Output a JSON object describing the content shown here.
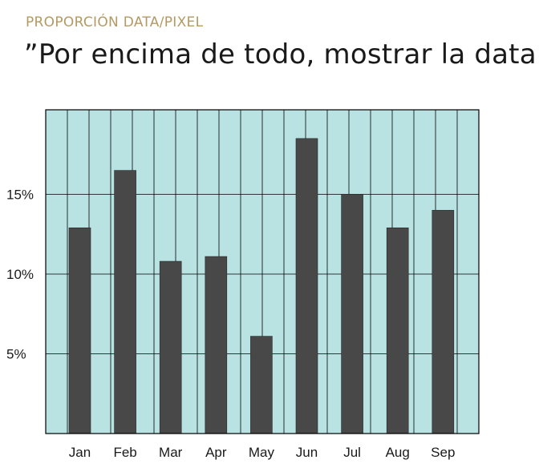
{
  "slide": {
    "kicker": "PROPORCIÓN DATA/PIXEL",
    "headline": "”Por encima de todo, mostrar la data.”"
  },
  "colors": {
    "plot_background": "#b9e2e2",
    "bar": "#484848",
    "grid": "#000000",
    "kicker": "#b39a63"
  },
  "chart_data": {
    "type": "bar",
    "categories": [
      "Jan",
      "Feb",
      "Mar",
      "Apr",
      "May",
      "Jun",
      "Jul",
      "Aug",
      "Sep"
    ],
    "values": [
      12.9,
      16.5,
      10.8,
      11.1,
      6.1,
      18.5,
      15.0,
      12.9,
      14.0
    ],
    "yticks": [
      5,
      10,
      15
    ],
    "ytick_labels": [
      "5%",
      "10%",
      "15%"
    ],
    "ylim": [
      0,
      20.3
    ],
    "grid": true,
    "title": "",
    "xlabel": "",
    "ylabel": ""
  }
}
